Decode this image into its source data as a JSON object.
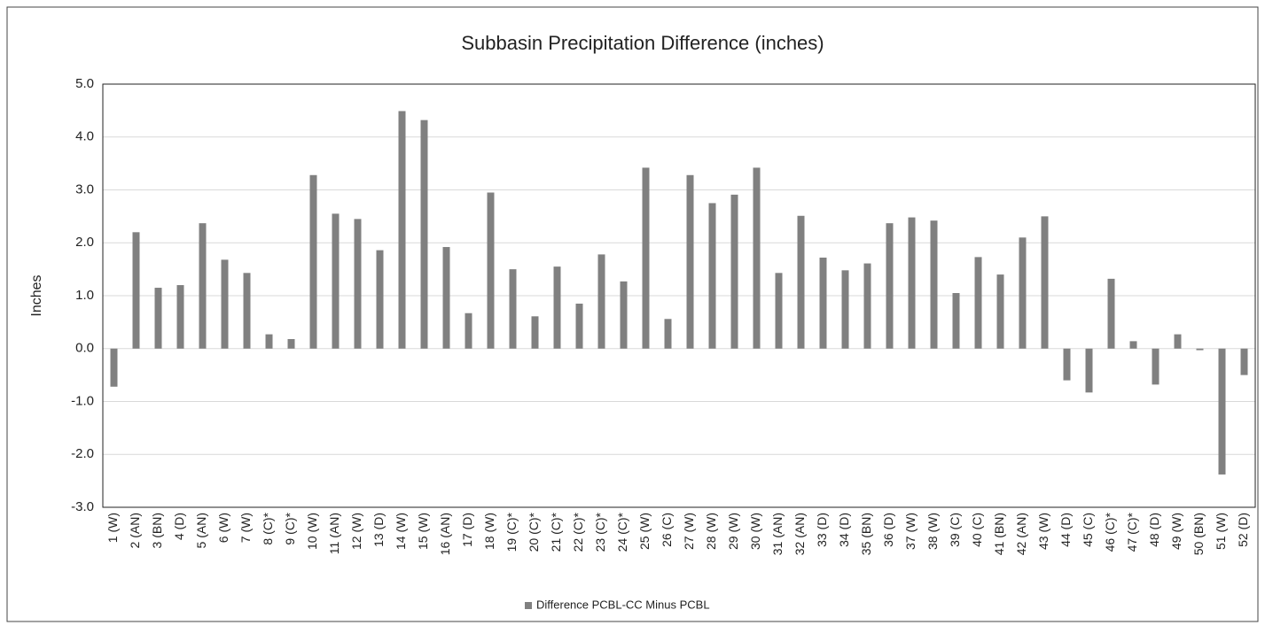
{
  "chart_data": {
    "type": "bar",
    "title": "Subbasin Precipitation Difference (inches)",
    "ylabel": "Inches",
    "categories": [
      "1 (W)",
      "2 (AN)",
      "3 (BN)",
      "4 (D)",
      "5 (AN)",
      "6 (W)",
      "7 (W)",
      "8 (C)*",
      "9 (C)*",
      "10 (W)",
      "11 (AN)",
      "12 (W)",
      "13 (D)",
      "14 (W)",
      "15 (W)",
      "16 (AN)",
      "17 (D)",
      "18 (W)",
      "19 (C)*",
      "20 (C)*",
      "21 (C)*",
      "22 (C)*",
      "23 (C)*",
      "24 (C)*",
      "25 (W)",
      "26 (C)",
      "27 (W)",
      "28 (W)",
      "29 (W)",
      "30 (W)",
      "31 (AN)",
      "32 (AN)",
      "33 (D)",
      "34 (D)",
      "35 (BN)",
      "36 (D)",
      "37 (W)",
      "38 (W)",
      "39 (C)",
      "40 (C)",
      "41 (BN)",
      "42 (AN)",
      "43 (W)",
      "44 (D)",
      "45 (C)",
      "46 (C)*",
      "47 (C)*",
      "48 (D)",
      "49 (W)",
      "50 (BN)",
      "51 (W)",
      "52 (D)"
    ],
    "series": [
      {
        "name": "Difference PCBL-CC Minus PCBL",
        "color": "#808080",
        "values": [
          -0.72,
          2.2,
          1.15,
          1.2,
          2.37,
          1.68,
          1.43,
          0.27,
          0.18,
          3.28,
          2.55,
          2.45,
          1.86,
          4.49,
          4.32,
          1.92,
          0.67,
          2.95,
          1.5,
          0.61,
          1.55,
          0.85,
          1.78,
          1.27,
          3.42,
          0.56,
          3.28,
          2.75,
          2.91,
          3.42,
          1.43,
          2.51,
          1.72,
          1.48,
          1.61,
          2.37,
          2.48,
          2.42,
          1.05,
          1.73,
          1.4,
          2.1,
          2.5,
          -0.6,
          -0.83,
          1.32,
          0.14,
          -0.68,
          0.27,
          -0.03,
          -2.38,
          -0.5
        ]
      }
    ],
    "ylim": [
      -3,
      5
    ],
    "yticks": [
      {
        "value": -3,
        "label": "-3.0"
      },
      {
        "value": -2,
        "label": "-2.0"
      },
      {
        "value": -1,
        "label": "-1.0"
      },
      {
        "value": 0,
        "label": "0.0"
      },
      {
        "value": 1,
        "label": "1.0"
      },
      {
        "value": 2,
        "label": "2.0"
      },
      {
        "value": 3,
        "label": "3.0"
      },
      {
        "value": 4,
        "label": "4.0"
      },
      {
        "value": 5,
        "label": "5.0"
      }
    ],
    "grid": true,
    "legend": "bottom"
  }
}
